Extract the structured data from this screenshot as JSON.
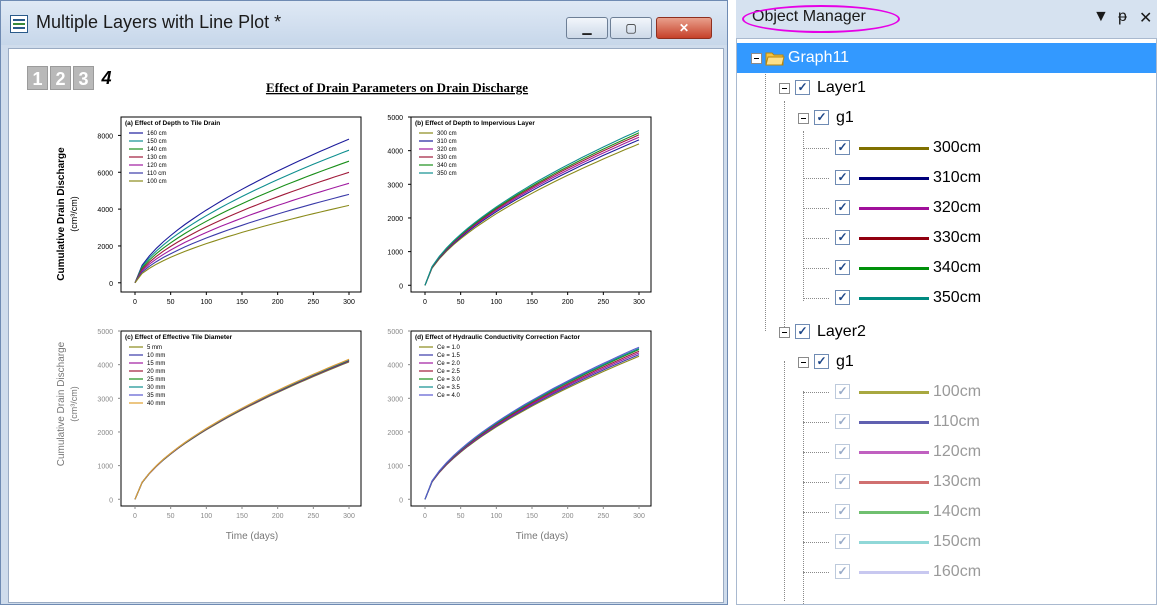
{
  "window": {
    "title": "Multiple Layers with Line Plot *",
    "buttons": {
      "minimize": "▁",
      "maximize": "▢",
      "close": "✕"
    }
  },
  "layer_tabs": [
    "1",
    "2",
    "3",
    "4"
  ],
  "graph": {
    "main_title": "Effect of Drain Parameters on Drain Discharge",
    "ylabel_line1": "Cumulative Drain Discharge",
    "ylabel_line2": "(cm³/cm)",
    "xlabel": "Time (days)"
  },
  "chart_data": [
    {
      "type": "line",
      "title": "(a) Effect of Depth to Tile Drain",
      "xlim": [
        0,
        300
      ],
      "ylim": [
        -500,
        9000
      ],
      "xticks": [
        0,
        50,
        100,
        150,
        200,
        250,
        300
      ],
      "yticks": [
        0,
        2000,
        4000,
        6000,
        8000
      ],
      "series": [
        {
          "name": "160 cm",
          "color": "#1c1c9c",
          "end": 7800
        },
        {
          "name": "150 cm",
          "color": "#0f8f8f",
          "end": 7200
        },
        {
          "name": "140 cm",
          "color": "#1a8f1a",
          "end": 6600
        },
        {
          "name": "130 cm",
          "color": "#a01a3a",
          "end": 6000
        },
        {
          "name": "120 cm",
          "color": "#a01aa0",
          "end": 5400
        },
        {
          "name": "110 cm",
          "color": "#3a3aa8",
          "end": 4800
        },
        {
          "name": "100 cm",
          "color": "#8a8a1a",
          "end": 4200
        }
      ]
    },
    {
      "type": "line",
      "title": "(b) Effect of Depth to Impervious Layer",
      "xlim": [
        0,
        300
      ],
      "ylim": [
        -200,
        5000
      ],
      "xticks": [
        0,
        50,
        100,
        150,
        200,
        250,
        300
      ],
      "yticks": [
        0,
        1000,
        2000,
        3000,
        4000,
        5000
      ],
      "series": [
        {
          "name": "300 cm",
          "color": "#8a8a1a",
          "end": 4200
        },
        {
          "name": "310 cm",
          "color": "#1c1c9c",
          "end": 4320
        },
        {
          "name": "320 cm",
          "color": "#a01aa0",
          "end": 4400
        },
        {
          "name": "330 cm",
          "color": "#a01a3a",
          "end": 4470
        },
        {
          "name": "340 cm",
          "color": "#1a8f1a",
          "end": 4530
        },
        {
          "name": "350 cm",
          "color": "#0f8f8f",
          "end": 4600
        }
      ]
    },
    {
      "type": "line",
      "title": "(c) Effect of Effective Tile Diameter",
      "xlim": [
        0,
        300
      ],
      "ylim": [
        -200,
        5000
      ],
      "xticks": [
        0,
        50,
        100,
        150,
        200,
        250,
        300
      ],
      "yticks": [
        0,
        1000,
        2000,
        3000,
        4000,
        5000
      ],
      "series": [
        {
          "name": "5 mm",
          "color": "#8a8a1a",
          "end": 4080
        },
        {
          "name": "10 mm",
          "color": "#3a3aa8",
          "end": 4100
        },
        {
          "name": "15 mm",
          "color": "#a01aa0",
          "end": 4110
        },
        {
          "name": "20 mm",
          "color": "#a01a3a",
          "end": 4120
        },
        {
          "name": "25 mm",
          "color": "#1a8f1a",
          "end": 4130
        },
        {
          "name": "30 mm",
          "color": "#0f8f8f",
          "end": 4140
        },
        {
          "name": "35 mm",
          "color": "#5a5ad0",
          "end": 4150
        },
        {
          "name": "40 mm",
          "color": "#e0a030",
          "end": 4160
        }
      ]
    },
    {
      "type": "line",
      "title": "(d) Effect of Hydraulic Conductivity Correction Factor",
      "xlim": [
        0,
        300
      ],
      "ylim": [
        -200,
        5000
      ],
      "xticks": [
        0,
        50,
        100,
        150,
        200,
        250,
        300
      ],
      "yticks": [
        0,
        1000,
        2000,
        3000,
        4000,
        5000
      ],
      "series": [
        {
          "name": "Ce = 1.0",
          "color": "#8a8a1a",
          "end": 4250
        },
        {
          "name": "Ce = 1.5",
          "color": "#3a3aa8",
          "end": 4300
        },
        {
          "name": "Ce = 2.0",
          "color": "#a01aa0",
          "end": 4350
        },
        {
          "name": "Ce = 2.5",
          "color": "#a01a3a",
          "end": 4400
        },
        {
          "name": "Ce = 3.0",
          "color": "#1a8f1a",
          "end": 4450
        },
        {
          "name": "Ce = 3.5",
          "color": "#0f8f8f",
          "end": 4480
        },
        {
          "name": "Ce = 4.0",
          "color": "#5a5ad0",
          "end": 4520
        }
      ]
    }
  ],
  "object_manager": {
    "title": "Object Manager",
    "controls": {
      "dropdown": "▼",
      "pin": "ᵽ",
      "close": "✕"
    },
    "graph_label": "Graph11",
    "layer1": {
      "label": "Layer1",
      "group": "g1",
      "plots": [
        {
          "label": "300cm",
          "color": "#807000"
        },
        {
          "label": "310cm",
          "color": "#00007a"
        },
        {
          "label": "320cm",
          "color": "#a0109a"
        },
        {
          "label": "330cm",
          "color": "#900010"
        },
        {
          "label": "340cm",
          "color": "#00900a"
        },
        {
          "label": "350cm",
          "color": "#008a80"
        }
      ]
    },
    "layer2": {
      "label": "Layer2",
      "group": "g1",
      "plots": [
        {
          "label": "100cm",
          "color": "#a8a840"
        },
        {
          "label": "110cm",
          "color": "#6060b0"
        },
        {
          "label": "120cm",
          "color": "#c060c0"
        },
        {
          "label": "130cm",
          "color": "#d07070"
        },
        {
          "label": "140cm",
          "color": "#70c070"
        },
        {
          "label": "150cm",
          "color": "#90d8d8"
        },
        {
          "label": "160cm",
          "color": "#c8c8f0"
        }
      ]
    },
    "checkmark": "✓"
  }
}
